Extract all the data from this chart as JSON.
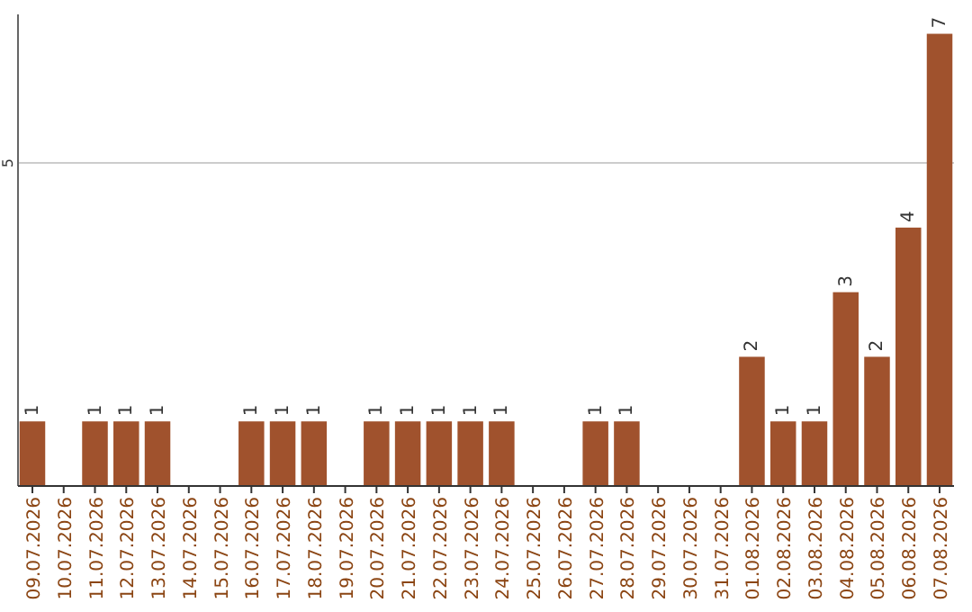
{
  "chart_data": {
    "type": "bar",
    "categories": [
      "09.07.2026",
      "10.07.2026",
      "11.07.2026",
      "12.07.2026",
      "13.07.2026",
      "14.07.2026",
      "15.07.2026",
      "16.07.2026",
      "17.07.2026",
      "18.07.2026",
      "19.07.2026",
      "20.07.2026",
      "21.07.2026",
      "22.07.2026",
      "23.07.2026",
      "24.07.2026",
      "25.07.2026",
      "26.07.2026",
      "27.07.2026",
      "28.07.2026",
      "29.07.2026",
      "30.07.2026",
      "31.07.2026",
      "01.08.2026",
      "02.08.2026",
      "03.08.2026",
      "04.08.2026",
      "05.08.2026",
      "06.08.2026",
      "07.08.2026"
    ],
    "values": [
      1,
      null,
      1,
      1,
      1,
      null,
      null,
      1,
      1,
      1,
      null,
      1,
      1,
      1,
      1,
      1,
      null,
      null,
      1,
      1,
      null,
      null,
      null,
      2,
      1,
      1,
      3,
      2,
      4,
      7
    ],
    "color": "#a0522d",
    "ylim": [
      0,
      7.3
    ],
    "yticks": [
      5
    ],
    "grid": "y",
    "data_labels": true
  }
}
